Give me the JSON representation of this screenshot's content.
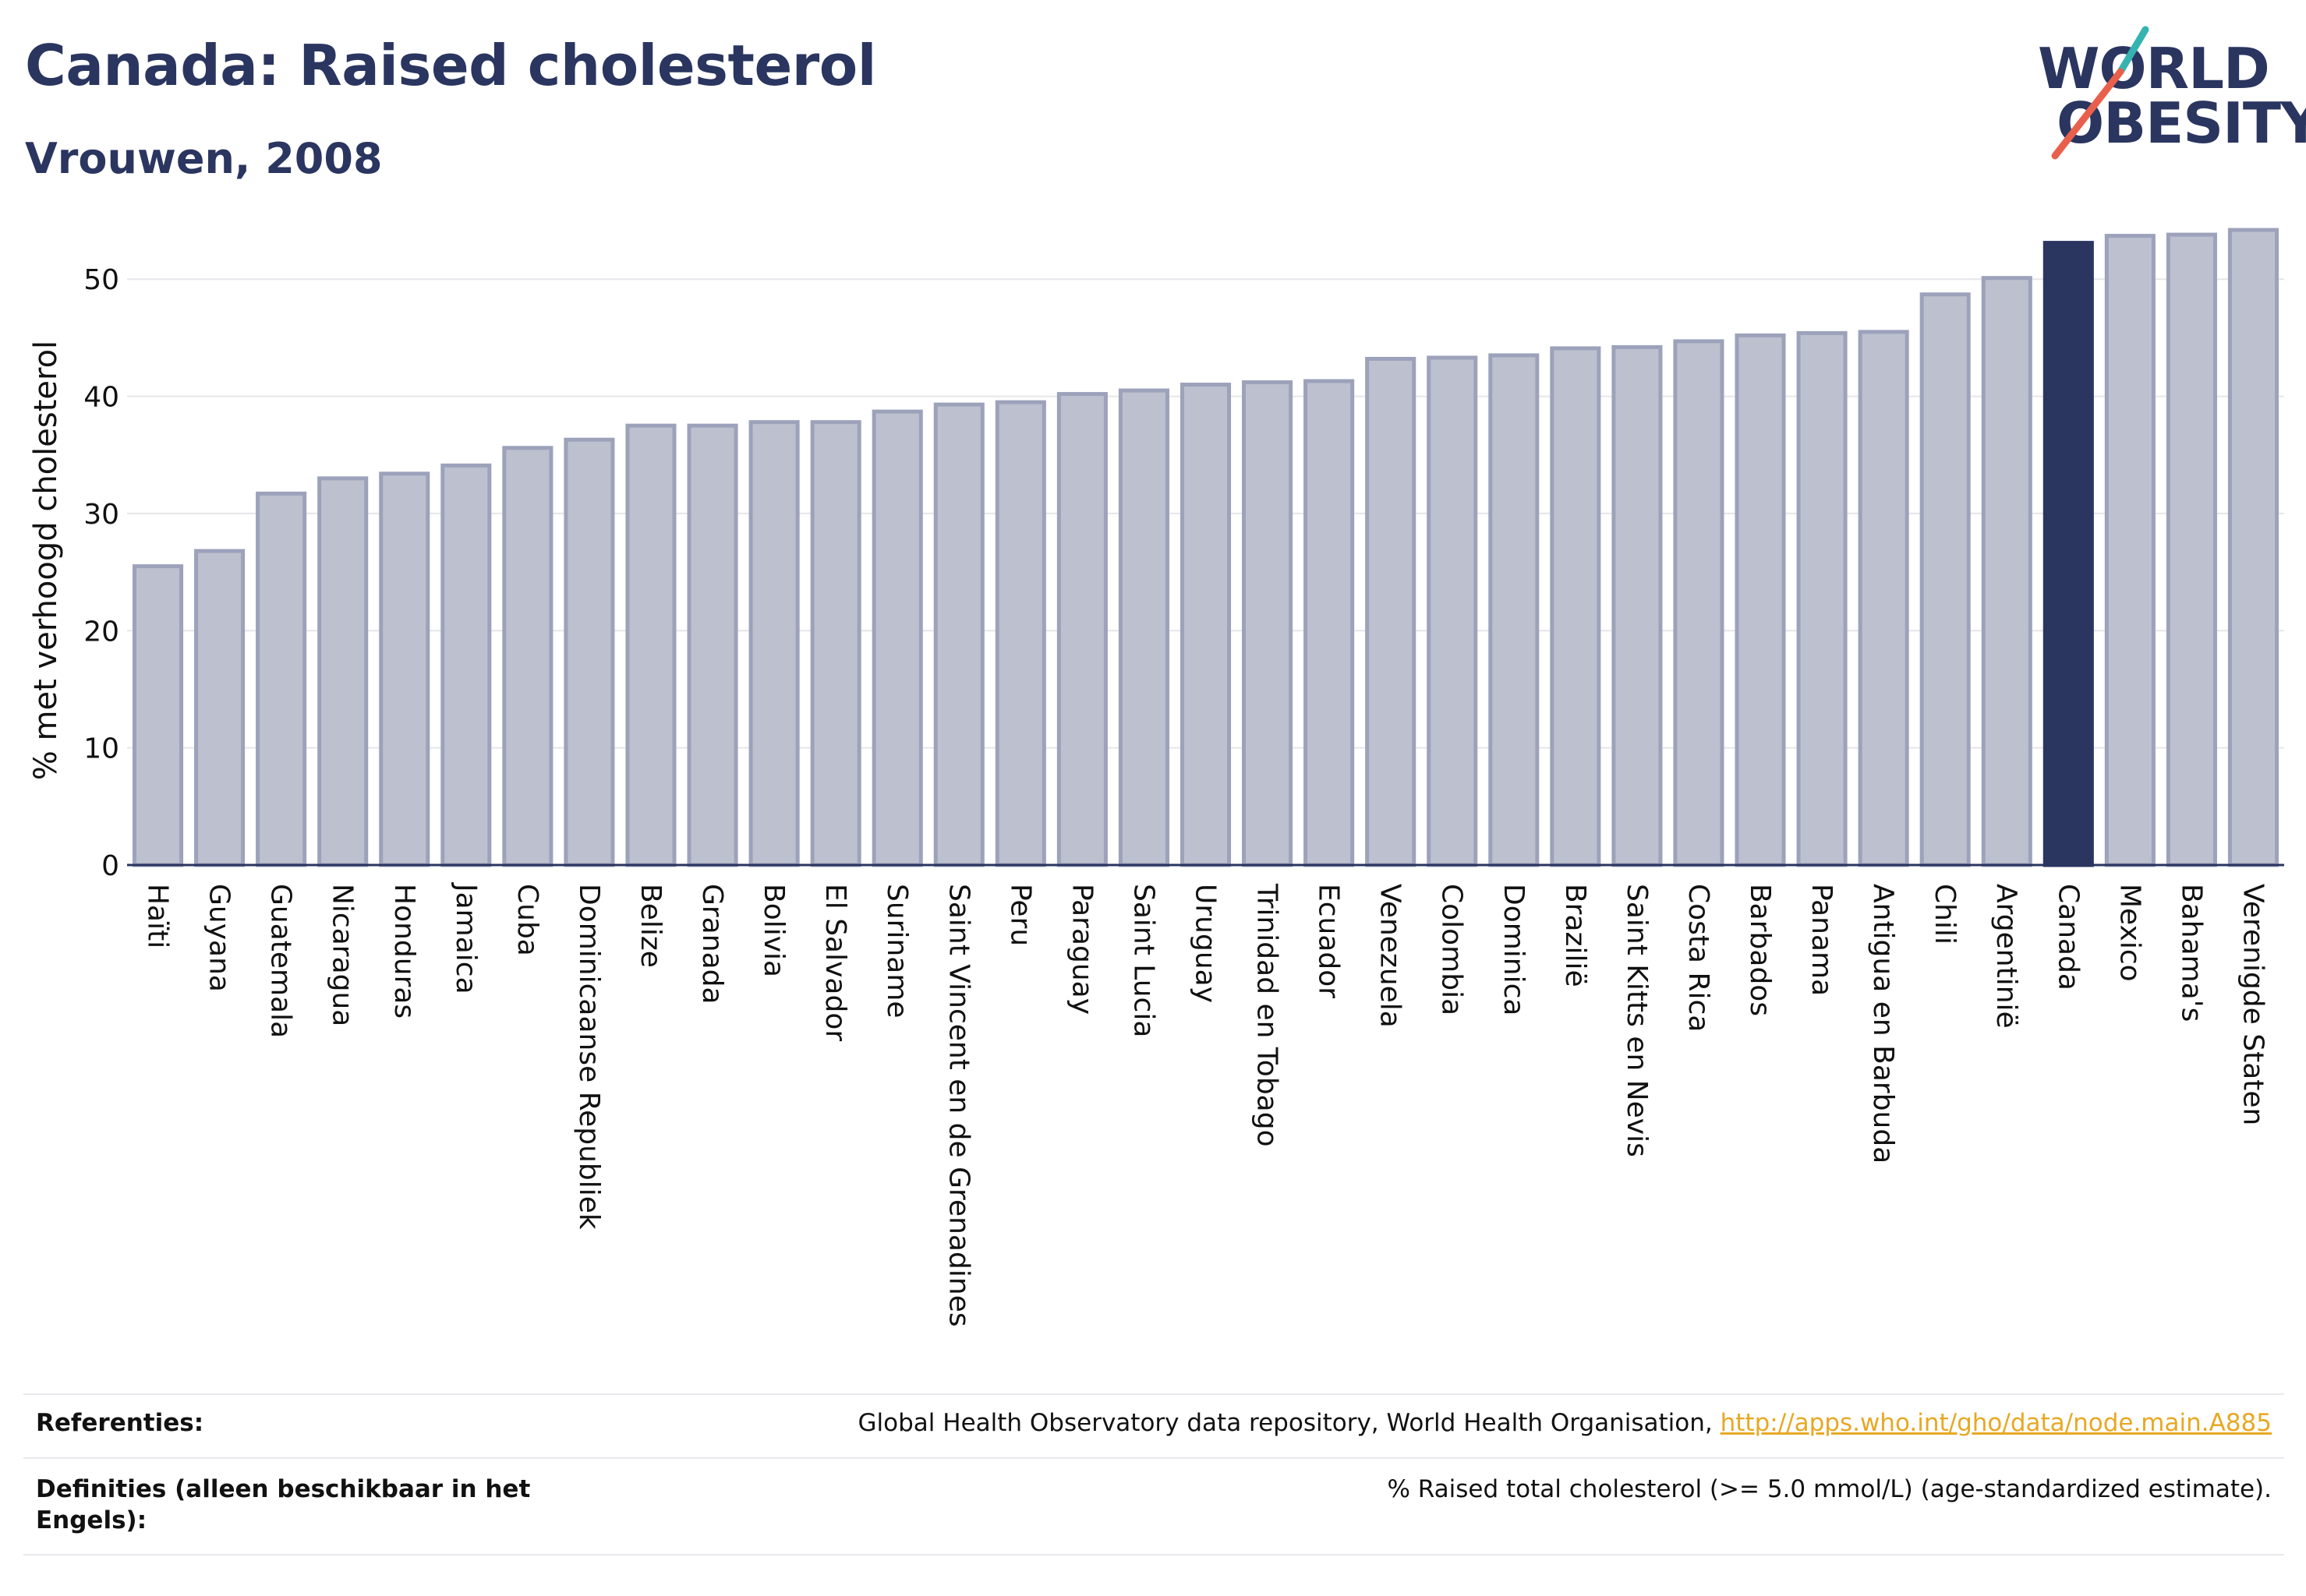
{
  "header": {
    "title": "Canada: Raised cholesterol",
    "subtitle": "Vrouwen, 2008"
  },
  "logo": {
    "line1": "WORLD",
    "line2": "OBESITY"
  },
  "colors": {
    "bar": "#bdc0ce",
    "bar_stroke": "#9da2bb",
    "highlight": "#2a3560",
    "accent_teal": "#35b3b0",
    "accent_red": "#e8604c",
    "link": "#e7a823"
  },
  "chart_data": {
    "type": "bar",
    "title": "Canada: Raised cholesterol",
    "subtitle": "Vrouwen, 2008",
    "xlabel": "",
    "ylabel": "% met verhoogd cholesterol",
    "ylim": [
      0,
      56
    ],
    "yticks": [
      0,
      10,
      20,
      30,
      40,
      50
    ],
    "grid": true,
    "highlight_category": "Canada",
    "categories": [
      "Haïti",
      "Guyana",
      "Guatemala",
      "Nicaragua",
      "Honduras",
      "Jamaica",
      "Cuba",
      "Dominicaanse Republiek",
      "Belize",
      "Granada",
      "Bolivia",
      "El Salvador",
      "Suriname",
      "Saint Vincent en de Grenadines",
      "Peru",
      "Paraguay",
      "Saint Lucia",
      "Uruguay",
      "Trinidad en Tobago",
      "Ecuador",
      "Venezuela",
      "Colombia",
      "Dominica",
      "Brazilië",
      "Saint Kitts en Nevis",
      "Costa Rica",
      "Barbados",
      "Panama",
      "Antigua en Barbuda",
      "Chili",
      "Argentinië",
      "Canada",
      "Mexico",
      "Bahama's",
      "Verenigde Staten"
    ],
    "values": [
      25.5,
      26.8,
      31.7,
      33.0,
      33.4,
      34.1,
      35.6,
      36.3,
      37.5,
      37.5,
      37.8,
      37.8,
      38.7,
      39.3,
      39.5,
      40.2,
      40.5,
      41.0,
      41.2,
      41.3,
      43.2,
      43.3,
      43.5,
      44.1,
      44.2,
      44.7,
      45.2,
      45.4,
      45.5,
      48.7,
      50.1,
      53.1,
      53.7,
      53.8,
      54.2
    ]
  },
  "footer": {
    "ref_label": "Referenties:",
    "ref_text": "Global Health Observatory data repository, World Health Organisation, ",
    "ref_link": "http://apps.who.int/gho/data/node.main.A885",
    "def_label_1": "Definities (alleen beschikbaar in het",
    "def_label_2": "Engels):",
    "def_text": "% Raised total cholesterol (>= 5.0 mmol/L) (age-standardized estimate)."
  }
}
